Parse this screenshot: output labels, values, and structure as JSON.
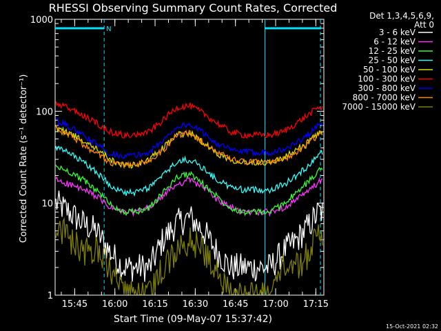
{
  "title": "RHESSI Observing Summary Count Rates, Corrected",
  "detector_note": [
    "Det 1,3,4,5,6,9,",
    "Att 0"
  ],
  "timestamp": "15-Oct-2021 02:32",
  "colors": {
    "background": "#000000",
    "axis": "#ffffff",
    "marker": "#00e5ff"
  },
  "chart_data": {
    "type": "line",
    "title": "RHESSI Observing Summary Count Rates, Corrected",
    "xlabel": "Start Time (09-May-07 15:37:42)",
    "ylabel": "Corrected Count Rate (s⁻¹ detector⁻¹)",
    "y_scale": "log",
    "ylim": [
      1,
      1000
    ],
    "xlim": [
      "15:37:42",
      "17:18:00"
    ],
    "x_ticks": [
      "15:45",
      "16:00",
      "16:15",
      "16:30",
      "16:45",
      "17:00",
      "17:15"
    ],
    "y_ticks": [
      "1",
      "10",
      "100",
      "1000"
    ],
    "grid": false,
    "legend_position": "right",
    "markers": {
      "night_end": "15:56",
      "night_start": "16:56",
      "label": "N"
    },
    "x": [
      "15:38",
      "15:43",
      "15:48",
      "15:53",
      "15:58",
      "16:03",
      "16:08",
      "16:13",
      "16:18",
      "16:23",
      "16:28",
      "16:33",
      "16:38",
      "16:43",
      "16:48",
      "16:53",
      "16:58",
      "17:03",
      "17:08",
      "17:13",
      "17:16"
    ],
    "series": [
      {
        "name": "3 - 6 keV",
        "color": "#ffffff",
        "values": [
          10,
          8,
          6,
          5,
          3,
          2,
          2,
          2,
          4,
          6,
          7,
          5,
          3,
          2,
          2,
          2,
          2,
          3,
          4,
          6,
          8
        ]
      },
      {
        "name": "6 - 12 keV",
        "color": "#ff33ff",
        "values": [
          18,
          16,
          14,
          12,
          9,
          8,
          8,
          9,
          12,
          16,
          18,
          15,
          11,
          9,
          8,
          8,
          8,
          9,
          11,
          14,
          17
        ]
      },
      {
        "name": "12 - 25 keV",
        "color": "#33ff33",
        "values": [
          25,
          22,
          18,
          14,
          10,
          8,
          8,
          9,
          13,
          19,
          21,
          16,
          12,
          9,
          8,
          8,
          8,
          10,
          13,
          18,
          23
        ]
      },
      {
        "name": "25 - 50 keV",
        "color": "#33ffff",
        "values": [
          40,
          35,
          28,
          22,
          16,
          13,
          13,
          15,
          20,
          28,
          30,
          24,
          18,
          15,
          14,
          14,
          14,
          16,
          20,
          27,
          35
        ]
      },
      {
        "name": "50 - 100 keV",
        "color": "#dddd00",
        "values": [
          65,
          58,
          48,
          40,
          30,
          26,
          26,
          30,
          40,
          55,
          58,
          46,
          35,
          30,
          28,
          28,
          28,
          31,
          38,
          48,
          58
        ]
      },
      {
        "name": "100 - 300 keV",
        "color": "#ff0000",
        "values": [
          120,
          108,
          90,
          75,
          60,
          55,
          55,
          60,
          80,
          110,
          115,
          95,
          75,
          60,
          55,
          55,
          55,
          60,
          75,
          95,
          110
        ]
      },
      {
        "name": "300 - 800 keV",
        "color": "#0000ff",
        "values": [
          78,
          68,
          55,
          44,
          35,
          33,
          33,
          36,
          48,
          68,
          72,
          58,
          45,
          38,
          36,
          36,
          36,
          38,
          46,
          58,
          70
        ]
      },
      {
        "name": "800 - 7000 keV",
        "color": "#ff8800",
        "values": [
          65,
          55,
          44,
          35,
          28,
          26,
          26,
          29,
          38,
          55,
          58,
          46,
          36,
          30,
          28,
          28,
          28,
          30,
          36,
          46,
          56
        ]
      },
      {
        "name": "7000 - 15000 keV",
        "color": "#808000",
        "values": [
          6,
          4,
          3,
          3,
          2,
          1,
          1,
          1,
          2,
          3,
          4,
          3,
          2,
          1,
          1,
          1,
          1,
          2,
          2,
          3,
          5
        ]
      }
    ]
  }
}
